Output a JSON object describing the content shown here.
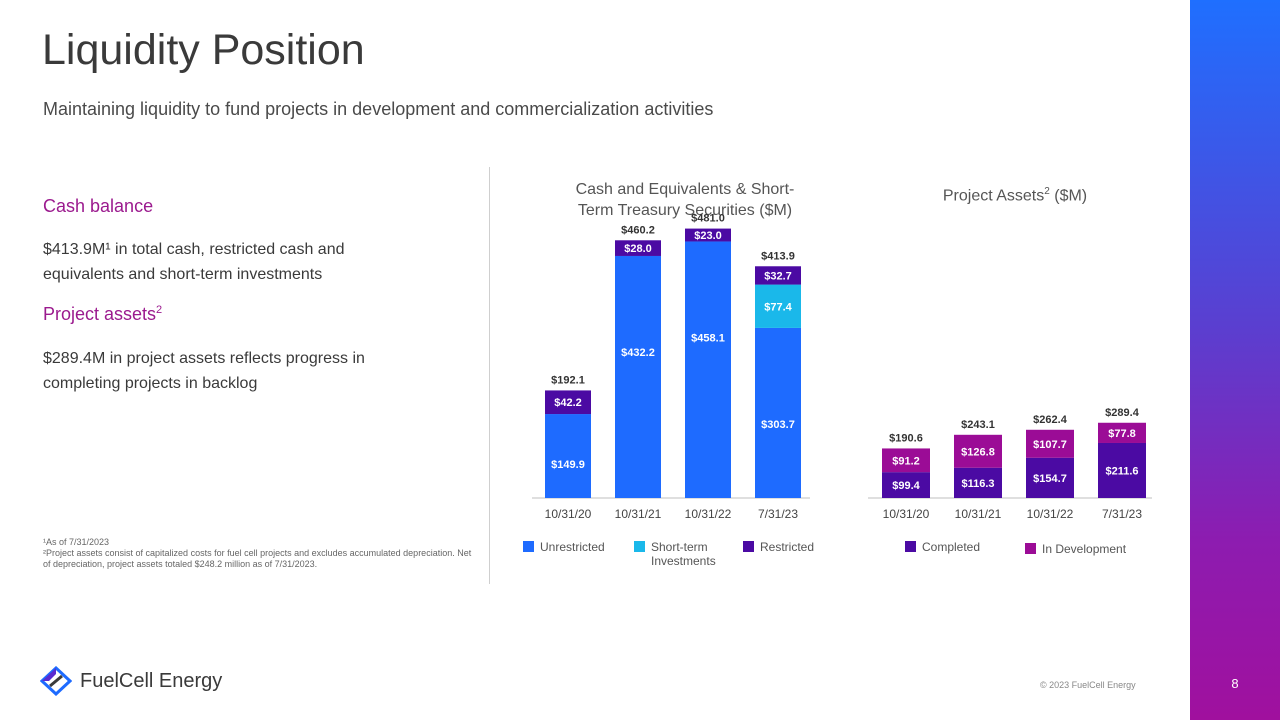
{
  "title": "Liquidity Position",
  "subtitle": "Maintaining liquidity to fund projects in development and commercialization activities",
  "cash": {
    "heading": "Cash balance",
    "body_line1": "$413.9M¹ in total cash, restricted cash and",
    "body_line2": "equivalents and short-term investments"
  },
  "assets": {
    "heading": "Project assets",
    "heading_sup": "2",
    "body_line1": "$289.4M in project assets reflects progress in",
    "body_line2": "completing projects in backlog"
  },
  "footnotes": {
    "note1": "¹As of 7/31/2023",
    "note2": "²Project assets consist of capitalized costs for fuel cell projects and excludes accumulated depreciation. Net of depreciation, project assets totaled $248.2 million as of 7/31/2023."
  },
  "colors": {
    "unrestricted": "#1e6bff",
    "short_term": "#1ab8ea",
    "restricted": "#4b0aa3",
    "completed": "#4b0aa3",
    "in_development": "#9b0c96",
    "accent": "#9b1a8e"
  },
  "chart_data": [
    {
      "type": "bar",
      "stacked": true,
      "title_line1": "Cash and Equivalents & Short-",
      "title_line2": "Term Treasury Securities ($M)",
      "categories": [
        "10/31/20",
        "10/31/21",
        "10/31/22",
        "7/31/23"
      ],
      "series": [
        {
          "name": "Unrestricted",
          "values": [
            149.9,
            432.2,
            458.1,
            303.7
          ],
          "labels": [
            "$149.9",
            "$432.2",
            "$458.1",
            "$303.7"
          ]
        },
        {
          "name": "Short-term Investments",
          "values": [
            0,
            0,
            0,
            77.4
          ],
          "labels": [
            "",
            "",
            "",
            "$77.4"
          ]
        },
        {
          "name": "Restricted",
          "values": [
            42.2,
            28.0,
            23.0,
            32.7
          ],
          "labels": [
            "$42.2",
            "$28.0",
            "$23.0",
            "$32.7"
          ]
        }
      ],
      "totals": [
        "$192.1",
        "$460.2",
        "$481.0",
        "$413.9"
      ],
      "legend": [
        {
          "label_line1": "Unrestricted",
          "label_line2": ""
        },
        {
          "label_line1": "Short-term",
          "label_line2": "Investments"
        },
        {
          "label_line1": "Restricted",
          "label_line2": ""
        }
      ],
      "legend_position": "bottom"
    },
    {
      "type": "bar",
      "stacked": true,
      "title": "Project Assets",
      "title_sup": "2",
      "title_suffix": " ($M)",
      "categories": [
        "10/31/20",
        "10/31/21",
        "10/31/22",
        "7/31/23"
      ],
      "series": [
        {
          "name": "Completed",
          "values": [
            99.4,
            116.3,
            154.7,
            211.6
          ],
          "labels": [
            "$99.4",
            "$116.3",
            "$154.7",
            "$211.6"
          ]
        },
        {
          "name": "In Development",
          "values": [
            91.2,
            126.8,
            107.7,
            77.8
          ],
          "labels": [
            "$91.2",
            "$126.8",
            "$107.7",
            "$77.8"
          ]
        }
      ],
      "totals": [
        "$190.6",
        "$243.1",
        "$262.4",
        "$289.4"
      ],
      "legend": [
        {
          "label_line1": "Completed",
          "label_line2": ""
        },
        {
          "label_line1": "In Development",
          "label_line2": ""
        }
      ],
      "legend_position": "bottom"
    }
  ],
  "brand": {
    "name": "FuelCell Energy",
    "logo_icon": "fuelcell-logo-icon"
  },
  "copyright": "© 2023 FuelCell Energy",
  "page_number": "8"
}
